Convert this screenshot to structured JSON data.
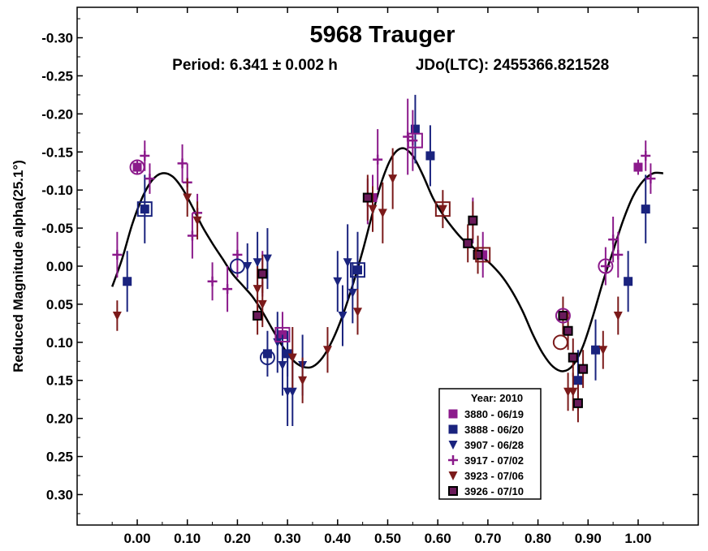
{
  "chart_data": {
    "type": "scatter",
    "title": "5968 Trauger",
    "subtitle_left": "Period: 6.341 ± 0.002 h",
    "subtitle_right": "JDo(LTC): 2455366.821528",
    "xlabel": "",
    "ylabel": "Reduced Magnitude alpha(25.1°)",
    "xlim": [
      -0.12,
      1.12
    ],
    "ylim": [
      -0.34,
      0.34
    ],
    "y_inverted": true,
    "xticks": [
      "0.00",
      "0.10",
      "0.20",
      "0.30",
      "0.40",
      "0.50",
      "0.60",
      "0.70",
      "0.80",
      "0.90",
      "1.00"
    ],
    "yticks": [
      "-0.30",
      "-0.25",
      "-0.20",
      "-0.15",
      "-0.10",
      "-0.05",
      "0.00",
      "0.05",
      "0.10",
      "0.15",
      "0.20",
      "0.25",
      "0.30"
    ],
    "legend": {
      "title": "Year: 2010",
      "position": "bottom-right"
    },
    "series": [
      {
        "name": "3880 - 06/19",
        "marker": "square",
        "color": "#8B1A8B",
        "points": [
          [
            0.0,
            -0.13,
            0.01
          ],
          [
            0.25,
            0.01,
            0.03
          ],
          [
            0.29,
            0.09,
            0.03
          ],
          [
            0.47,
            -0.09,
            0.03
          ],
          [
            0.67,
            -0.06,
            0.03
          ],
          [
            0.69,
            -0.015,
            0.03
          ],
          [
            1.0,
            -0.13,
            0.01
          ]
        ]
      },
      {
        "name": "3888 - 06/20",
        "marker": "square",
        "color": "#1A237E",
        "points": [
          [
            -0.02,
            0.02,
            0.04
          ],
          [
            0.015,
            -0.075,
            0.045
          ],
          [
            0.26,
            0.115,
            0.03
          ],
          [
            0.3,
            0.115,
            0.03
          ],
          [
            0.44,
            0.005,
            0.05
          ],
          [
            0.555,
            -0.18,
            0.045
          ],
          [
            0.585,
            -0.145,
            0.04
          ],
          [
            0.88,
            0.15,
            0.04
          ],
          [
            0.915,
            0.11,
            0.04
          ],
          [
            0.98,
            0.02,
            0.04
          ],
          [
            1.015,
            -0.075,
            0.045
          ]
        ]
      },
      {
        "name": "3907 - 06/28",
        "marker": "triangle-down",
        "color": "#1A237E",
        "points": [
          [
            0.22,
            0.0,
            0.03
          ],
          [
            0.24,
            -0.005,
            0.04
          ],
          [
            0.26,
            -0.01,
            0.04
          ],
          [
            0.28,
            0.1,
            0.04
          ],
          [
            0.29,
            0.13,
            0.04
          ],
          [
            0.3,
            0.165,
            0.045
          ],
          [
            0.31,
            0.165,
            0.045
          ],
          [
            0.33,
            0.13,
            0.04
          ],
          [
            0.4,
            0.02,
            0.04
          ],
          [
            0.41,
            0.065,
            0.04
          ],
          [
            0.42,
            -0.005,
            0.05
          ],
          [
            0.43,
            0.035,
            0.04
          ]
        ]
      },
      {
        "name": "3917 - 07/02",
        "marker": "plus",
        "color": "#8B1A8B",
        "points": [
          [
            -0.04,
            -0.015,
            0.03
          ],
          [
            0.015,
            -0.145,
            0.02
          ],
          [
            0.025,
            -0.115,
            0.02
          ],
          [
            0.09,
            -0.135,
            0.025
          ],
          [
            0.1,
            -0.11,
            0.025
          ],
          [
            0.11,
            -0.04,
            0.03
          ],
          [
            0.12,
            -0.07,
            0.025
          ],
          [
            0.15,
            0.02,
            0.025
          ],
          [
            0.18,
            0.03,
            0.03
          ],
          [
            0.2,
            -0.015,
            0.03
          ],
          [
            0.46,
            -0.085,
            0.03
          ],
          [
            0.48,
            -0.14,
            0.04
          ],
          [
            0.54,
            -0.17,
            0.05
          ],
          [
            0.55,
            -0.165,
            0.04
          ],
          [
            0.935,
            0.0,
            0.025
          ],
          [
            0.95,
            -0.035,
            0.03
          ],
          [
            0.96,
            -0.015,
            0.03
          ],
          [
            1.015,
            -0.145,
            0.02
          ],
          [
            1.025,
            -0.115,
            0.02
          ]
        ]
      },
      {
        "name": "3923 - 07/06",
        "marker": "triangle-down",
        "color": "#7B1A1A",
        "points": [
          [
            -0.04,
            0.065,
            0.02
          ],
          [
            0.1,
            -0.09,
            0.025
          ],
          [
            0.12,
            -0.06,
            0.025
          ],
          [
            0.24,
            0.03,
            0.03
          ],
          [
            0.25,
            0.05,
            0.03
          ],
          [
            0.31,
            0.12,
            0.04
          ],
          [
            0.33,
            0.15,
            0.03
          ],
          [
            0.38,
            0.11,
            0.03
          ],
          [
            0.44,
            0.06,
            0.03
          ],
          [
            0.47,
            -0.075,
            0.03
          ],
          [
            0.49,
            -0.07,
            0.04
          ],
          [
            0.51,
            -0.115,
            0.04
          ],
          [
            0.61,
            -0.075,
            0.025
          ],
          [
            0.86,
            0.165,
            0.025
          ],
          [
            0.87,
            0.165,
            0.025
          ],
          [
            0.93,
            0.11,
            0.025
          ],
          [
            0.96,
            0.065,
            0.025
          ]
        ]
      },
      {
        "name": "3926 - 07/10",
        "marker": "square-outline",
        "color": "#7B1A1A",
        "points": [
          [
            0.24,
            0.065,
            0.025
          ],
          [
            0.25,
            0.01,
            0.025
          ],
          [
            0.46,
            -0.09,
            0.03
          ],
          [
            0.66,
            -0.03,
            0.025
          ],
          [
            0.67,
            -0.06,
            0.025
          ],
          [
            0.68,
            -0.015,
            0.025
          ],
          [
            0.85,
            0.065,
            0.025
          ],
          [
            0.86,
            0.085,
            0.025
          ],
          [
            0.87,
            0.12,
            0.025
          ],
          [
            0.88,
            0.18,
            0.025
          ],
          [
            0.89,
            0.135,
            0.025
          ]
        ]
      }
    ],
    "highlighted_points": [
      {
        "shape": "circle",
        "color": "#8B1A8B",
        "x": 0.0,
        "y": -0.13
      },
      {
        "shape": "square",
        "color": "#1A237E",
        "x": 0.015,
        "y": -0.075
      },
      {
        "shape": "circle",
        "color": "#1A237E",
        "x": 0.2,
        "y": 0.0
      },
      {
        "shape": "circle",
        "color": "#1A237E",
        "x": 0.26,
        "y": 0.12
      },
      {
        "shape": "square",
        "color": "#8B1A8B",
        "x": 0.29,
        "y": 0.09
      },
      {
        "shape": "square",
        "color": "#1A237E",
        "x": 0.44,
        "y": 0.005
      },
      {
        "shape": "square",
        "color": "#8B1A8B",
        "x": 0.555,
        "y": -0.165
      },
      {
        "shape": "square",
        "color": "#7B1A1A",
        "x": 0.61,
        "y": -0.075
      },
      {
        "shape": "square",
        "color": "#7B1A1A",
        "x": 0.69,
        "y": -0.015
      },
      {
        "shape": "circle",
        "color": "#7B1A1A",
        "x": 0.845,
        "y": 0.1
      },
      {
        "shape": "circle",
        "color": "#8B1A8B",
        "x": 0.85,
        "y": 0.065
      },
      {
        "shape": "circle",
        "color": "#8B1A8B",
        "x": 0.935,
        "y": 0.0
      }
    ],
    "fit_curve": {
      "color": "#000000",
      "x": [
        -0.05,
        -0.03,
        -0.01,
        0.01,
        0.03,
        0.05,
        0.07,
        0.09,
        0.11,
        0.13,
        0.15,
        0.17,
        0.19,
        0.21,
        0.23,
        0.25,
        0.27,
        0.29,
        0.31,
        0.33,
        0.35,
        0.37,
        0.39,
        0.41,
        0.43,
        0.45,
        0.47,
        0.49,
        0.51,
        0.53,
        0.55,
        0.57,
        0.59,
        0.61,
        0.63,
        0.65,
        0.67,
        0.69,
        0.71,
        0.73,
        0.75,
        0.77,
        0.79,
        0.81,
        0.83,
        0.85,
        0.87,
        0.89,
        0.91,
        0.93,
        0.95,
        0.97,
        0.99,
        1.01,
        1.03,
        1.05
      ],
      "y": [
        0.027,
        -0.01,
        -0.055,
        -0.09,
        -0.113,
        -0.122,
        -0.118,
        -0.102,
        -0.078,
        -0.052,
        -0.03,
        -0.01,
        0.01,
        0.025,
        0.04,
        0.06,
        0.083,
        0.105,
        0.123,
        0.132,
        0.132,
        0.12,
        0.097,
        0.065,
        0.025,
        -0.02,
        -0.07,
        -0.115,
        -0.145,
        -0.155,
        -0.145,
        -0.12,
        -0.09,
        -0.068,
        -0.05,
        -0.035,
        -0.025,
        -0.012,
        0.0,
        0.015,
        0.035,
        0.06,
        0.09,
        0.115,
        0.132,
        0.138,
        0.13,
        0.105,
        0.065,
        0.02,
        -0.02,
        -0.06,
        -0.092,
        -0.112,
        -0.122,
        -0.122
      ]
    }
  }
}
